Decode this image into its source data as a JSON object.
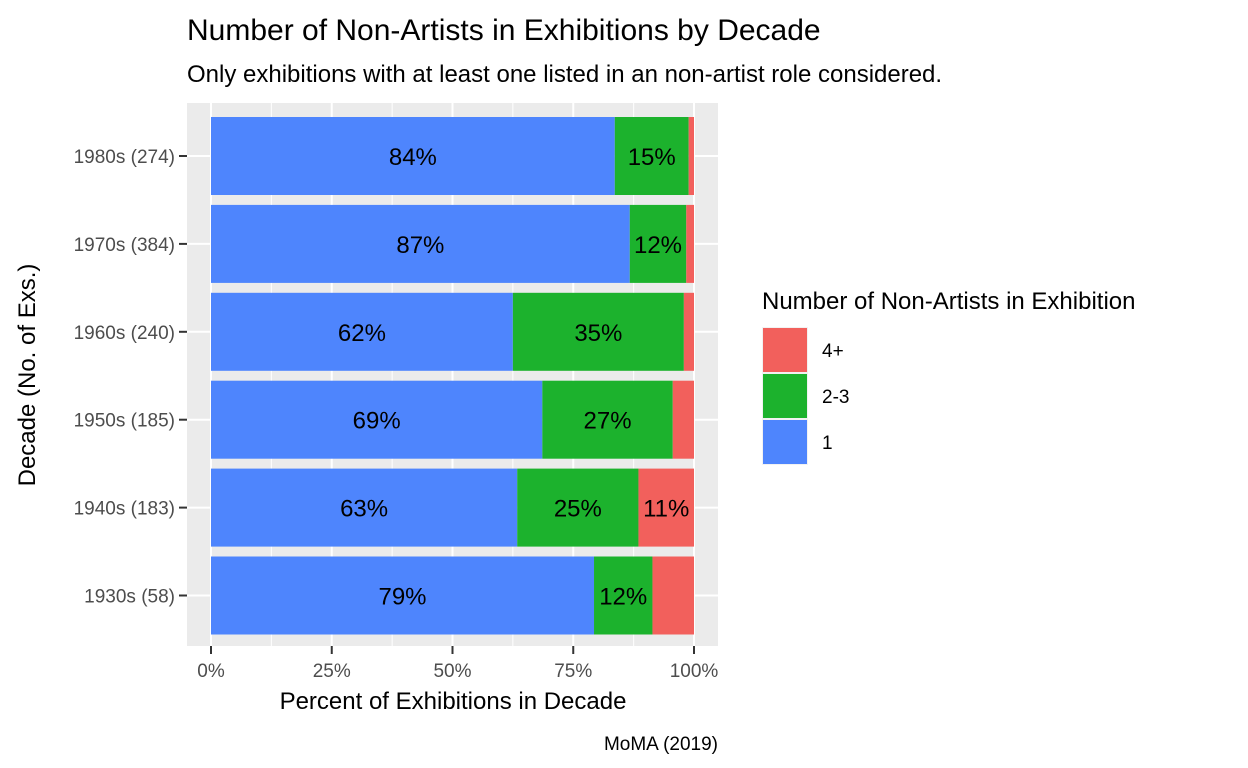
{
  "chart_data": {
    "type": "bar",
    "orientation": "horizontal",
    "stacked": true,
    "title": "Number of Non-Artists in Exhibitions by Decade",
    "subtitle": "Only exhibitions with at least one listed in an non-artist role considered.",
    "xlabel": "Percent of Exhibitions in Decade",
    "ylabel": "Decade (No. of Exs.)",
    "caption": "MoMA (2019)",
    "xlim": [
      0,
      100
    ],
    "x_ticks": [
      "0%",
      "25%",
      "50%",
      "75%",
      "100%"
    ],
    "grid": true,
    "legend": {
      "title": "Number of Non-Artists in Exhibition",
      "position": "right",
      "entries": [
        "4+",
        "2-3",
        "1"
      ]
    },
    "categories": [
      "1930s (58)",
      "1940s (183)",
      "1950s (185)",
      "1960s (240)",
      "1970s (384)",
      "1980s (274)"
    ],
    "series": [
      {
        "name": "1",
        "color": "#4E85FD",
        "values": [
          79.3,
          63.4,
          68.6,
          62.5,
          86.7,
          83.6
        ],
        "labels": [
          "79%",
          "63%",
          "69%",
          "62%",
          "87%",
          "84%"
        ]
      },
      {
        "name": "2-3",
        "color": "#1CB22D",
        "values": [
          12.1,
          25.1,
          27.0,
          35.4,
          11.7,
          15.3
        ],
        "labels": [
          "12%",
          "25%",
          "27%",
          "35%",
          "12%",
          "15%"
        ]
      },
      {
        "name": "4+",
        "color": "#F2605C",
        "values": [
          8.6,
          11.5,
          4.4,
          2.1,
          1.6,
          1.1
        ],
        "labels": [
          "",
          "11%",
          "",
          "",
          "",
          ""
        ]
      }
    ]
  }
}
